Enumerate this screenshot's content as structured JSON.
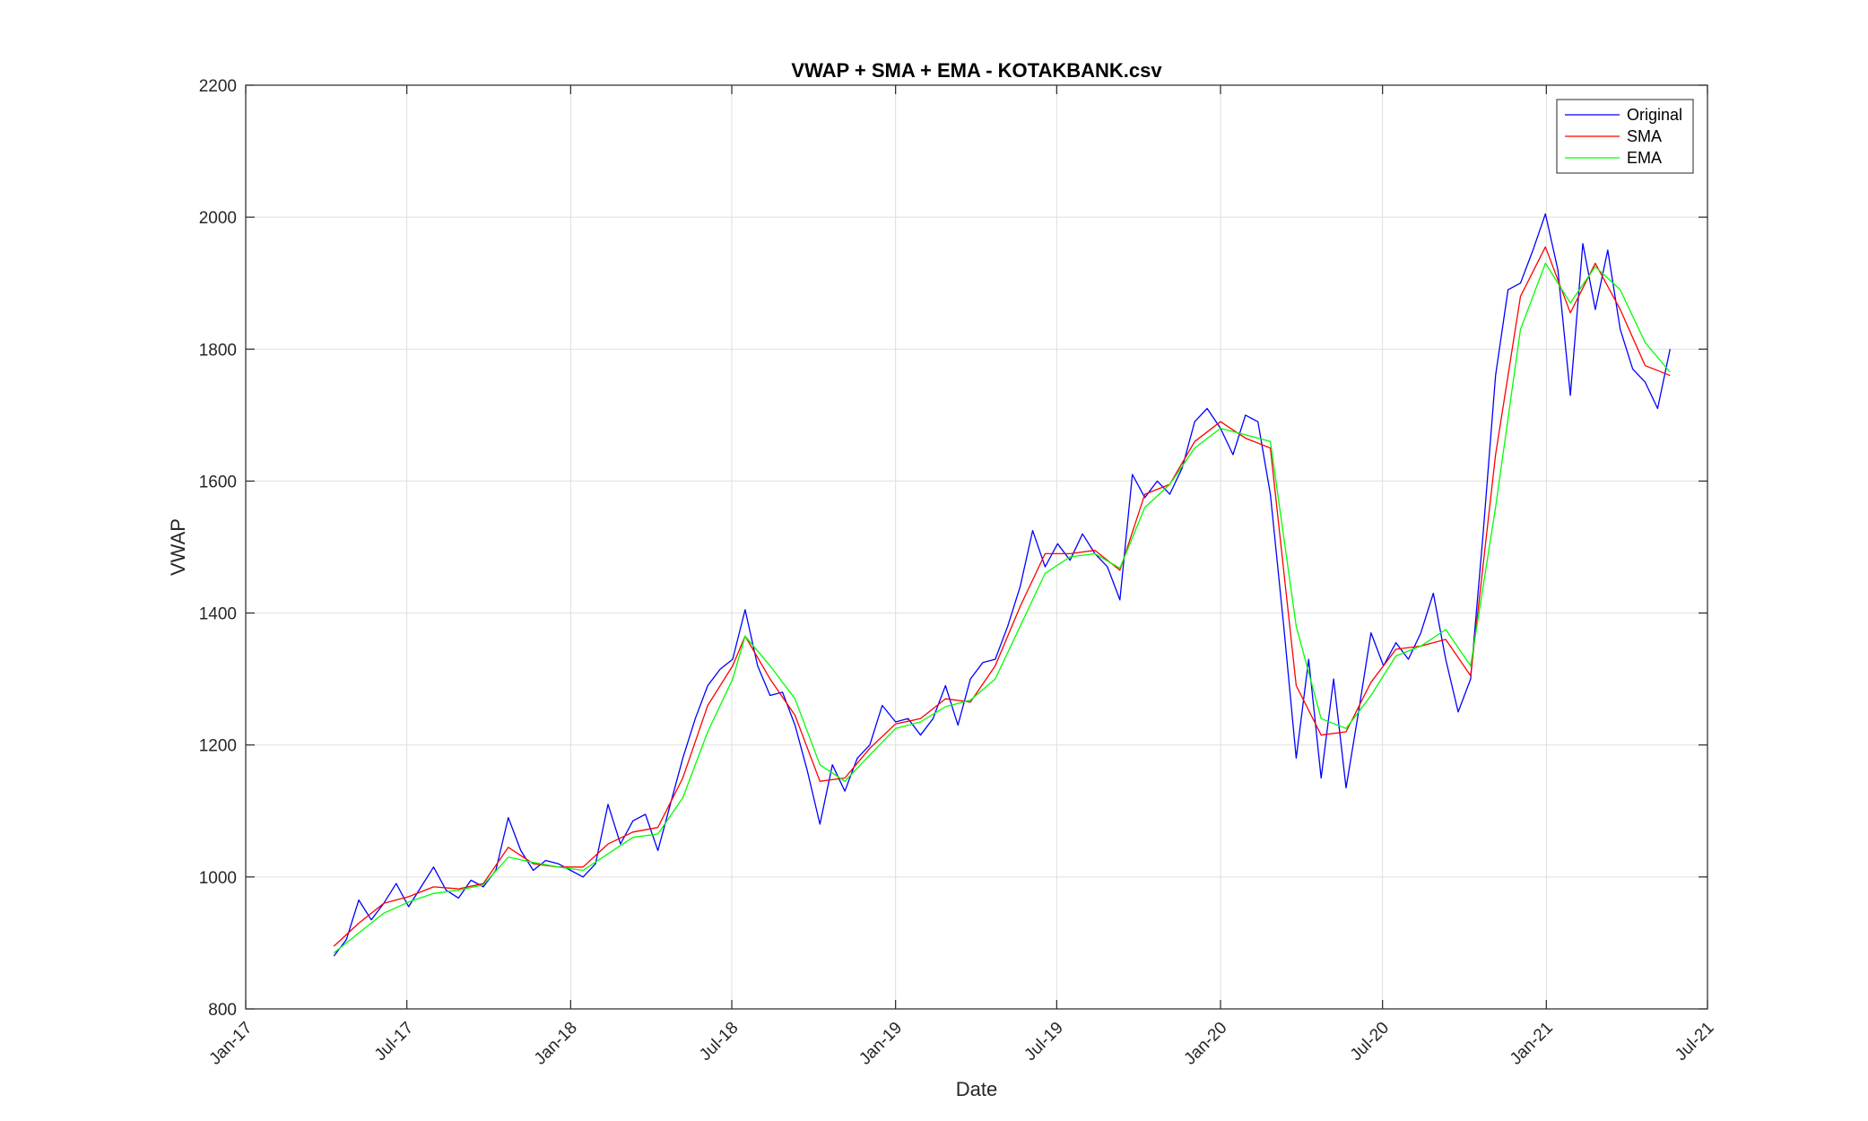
{
  "chart_data": {
    "type": "line",
    "title": "VWAP + SMA + EMA - KOTAKBANK.csv",
    "xlabel": "Date",
    "ylabel": "VWAP",
    "xlim": [
      "2017-01-01",
      "2021-07-01"
    ],
    "ylim": [
      800,
      2200
    ],
    "x_ticks": [
      "2017-01-01",
      "2017-07-01",
      "2018-01-01",
      "2018-07-01",
      "2019-01-01",
      "2019-07-01",
      "2020-01-01",
      "2020-07-01",
      "2021-01-01",
      "2021-07-01"
    ],
    "x_tick_labels": [
      "Jan-17",
      "Jul-17",
      "Jan-18",
      "Jul-18",
      "Jan-19",
      "Jul-19",
      "Jan-20",
      "Jul-20",
      "Jan-21",
      "Jul-21"
    ],
    "y_ticks": [
      800,
      1000,
      1200,
      1400,
      1600,
      1800,
      2000,
      2200
    ],
    "y_tick_labels": [
      "800",
      "1000",
      "1200",
      "1400",
      "1600",
      "1800",
      "2000",
      "2200"
    ],
    "grid": true,
    "legend_position": "top-right",
    "series": [
      {
        "name": "Original",
        "color": "#0000ff",
        "points": [
          [
            "2017-04-10",
            880
          ],
          [
            "2017-04-24",
            905
          ],
          [
            "2017-05-08",
            965
          ],
          [
            "2017-05-22",
            935
          ],
          [
            "2017-06-05",
            960
          ],
          [
            "2017-06-19",
            990
          ],
          [
            "2017-07-03",
            955
          ],
          [
            "2017-07-17",
            985
          ],
          [
            "2017-07-31",
            1015
          ],
          [
            "2017-08-14",
            980
          ],
          [
            "2017-08-28",
            968
          ],
          [
            "2017-09-11",
            995
          ],
          [
            "2017-09-25",
            985
          ],
          [
            "2017-10-09",
            1010
          ],
          [
            "2017-10-23",
            1090
          ],
          [
            "2017-11-06",
            1040
          ],
          [
            "2017-11-20",
            1010
          ],
          [
            "2017-12-04",
            1025
          ],
          [
            "2017-12-18",
            1020
          ],
          [
            "2018-01-01",
            1010
          ],
          [
            "2018-01-15",
            1000
          ],
          [
            "2018-01-29",
            1020
          ],
          [
            "2018-02-12",
            1110
          ],
          [
            "2018-02-26",
            1050
          ],
          [
            "2018-03-12",
            1085
          ],
          [
            "2018-03-26",
            1095
          ],
          [
            "2018-04-09",
            1040
          ],
          [
            "2018-04-23",
            1110
          ],
          [
            "2018-05-07",
            1180
          ],
          [
            "2018-05-21",
            1240
          ],
          [
            "2018-06-04",
            1290
          ],
          [
            "2018-06-18",
            1315
          ],
          [
            "2018-07-02",
            1330
          ],
          [
            "2018-07-16",
            1405
          ],
          [
            "2018-07-30",
            1320
          ],
          [
            "2018-08-13",
            1275
          ],
          [
            "2018-08-27",
            1280
          ],
          [
            "2018-09-10",
            1230
          ],
          [
            "2018-09-24",
            1160
          ],
          [
            "2018-10-08",
            1080
          ],
          [
            "2018-10-22",
            1170
          ],
          [
            "2018-11-05",
            1130
          ],
          [
            "2018-11-19",
            1180
          ],
          [
            "2018-12-03",
            1200
          ],
          [
            "2018-12-17",
            1260
          ],
          [
            "2019-01-01",
            1235
          ],
          [
            "2019-01-15",
            1240
          ],
          [
            "2019-01-29",
            1215
          ],
          [
            "2019-02-12",
            1240
          ],
          [
            "2019-02-26",
            1290
          ],
          [
            "2019-03-12",
            1230
          ],
          [
            "2019-03-26",
            1300
          ],
          [
            "2019-04-09",
            1325
          ],
          [
            "2019-04-23",
            1330
          ],
          [
            "2019-05-07",
            1380
          ],
          [
            "2019-05-21",
            1440
          ],
          [
            "2019-06-04",
            1525
          ],
          [
            "2019-06-18",
            1470
          ],
          [
            "2019-07-02",
            1505
          ],
          [
            "2019-07-16",
            1480
          ],
          [
            "2019-07-30",
            1520
          ],
          [
            "2019-08-13",
            1490
          ],
          [
            "2019-08-27",
            1470
          ],
          [
            "2019-09-10",
            1420
          ],
          [
            "2019-09-24",
            1610
          ],
          [
            "2019-10-08",
            1575
          ],
          [
            "2019-10-22",
            1600
          ],
          [
            "2019-11-05",
            1580
          ],
          [
            "2019-11-19",
            1620
          ],
          [
            "2019-12-03",
            1690
          ],
          [
            "2019-12-17",
            1710
          ],
          [
            "2020-01-01",
            1680
          ],
          [
            "2020-01-15",
            1640
          ],
          [
            "2020-01-29",
            1700
          ],
          [
            "2020-02-12",
            1690
          ],
          [
            "2020-02-26",
            1580
          ],
          [
            "2020-03-12",
            1380
          ],
          [
            "2020-03-26",
            1180
          ],
          [
            "2020-04-09",
            1330
          ],
          [
            "2020-04-23",
            1150
          ],
          [
            "2020-05-07",
            1300
          ],
          [
            "2020-05-21",
            1135
          ],
          [
            "2020-06-04",
            1250
          ],
          [
            "2020-06-18",
            1370
          ],
          [
            "2020-07-02",
            1320
          ],
          [
            "2020-07-16",
            1355
          ],
          [
            "2020-07-30",
            1330
          ],
          [
            "2020-08-13",
            1370
          ],
          [
            "2020-08-27",
            1430
          ],
          [
            "2020-09-10",
            1330
          ],
          [
            "2020-09-24",
            1250
          ],
          [
            "2020-10-08",
            1300
          ],
          [
            "2020-10-22",
            1520
          ],
          [
            "2020-11-05",
            1760
          ],
          [
            "2020-11-19",
            1890
          ],
          [
            "2020-12-03",
            1900
          ],
          [
            "2020-12-17",
            1950
          ],
          [
            "2020-12-31",
            2005
          ],
          [
            "2021-01-14",
            1920
          ],
          [
            "2021-01-28",
            1730
          ],
          [
            "2021-02-11",
            1960
          ],
          [
            "2021-02-25",
            1860
          ],
          [
            "2021-03-11",
            1950
          ],
          [
            "2021-03-25",
            1830
          ],
          [
            "2021-04-08",
            1770
          ],
          [
            "2021-04-22",
            1750
          ],
          [
            "2021-05-06",
            1710
          ],
          [
            "2021-05-20",
            1800
          ]
        ]
      },
      {
        "name": "SMA",
        "color": "#ff0000",
        "points": [
          [
            "2017-04-10",
            895
          ],
          [
            "2017-05-08",
            930
          ],
          [
            "2017-06-05",
            960
          ],
          [
            "2017-07-03",
            970
          ],
          [
            "2017-07-31",
            985
          ],
          [
            "2017-08-28",
            982
          ],
          [
            "2017-09-25",
            990
          ],
          [
            "2017-10-23",
            1045
          ],
          [
            "2017-11-20",
            1020
          ],
          [
            "2017-12-18",
            1015
          ],
          [
            "2018-01-15",
            1015
          ],
          [
            "2018-02-12",
            1050
          ],
          [
            "2018-03-12",
            1068
          ],
          [
            "2018-04-09",
            1075
          ],
          [
            "2018-05-07",
            1150
          ],
          [
            "2018-06-04",
            1260
          ],
          [
            "2018-07-02",
            1320
          ],
          [
            "2018-07-16",
            1365
          ],
          [
            "2018-08-13",
            1300
          ],
          [
            "2018-09-10",
            1245
          ],
          [
            "2018-10-08",
            1145
          ],
          [
            "2018-11-05",
            1150
          ],
          [
            "2018-12-03",
            1195
          ],
          [
            "2019-01-01",
            1232
          ],
          [
            "2019-01-29",
            1240
          ],
          [
            "2019-02-26",
            1270
          ],
          [
            "2019-03-26",
            1265
          ],
          [
            "2019-04-23",
            1320
          ],
          [
            "2019-05-21",
            1410
          ],
          [
            "2019-06-18",
            1490
          ],
          [
            "2019-07-16",
            1490
          ],
          [
            "2019-08-13",
            1495
          ],
          [
            "2019-09-10",
            1465
          ],
          [
            "2019-10-08",
            1580
          ],
          [
            "2019-11-05",
            1595
          ],
          [
            "2019-12-03",
            1660
          ],
          [
            "2020-01-01",
            1690
          ],
          [
            "2020-01-29",
            1665
          ],
          [
            "2020-02-26",
            1650
          ],
          [
            "2020-03-26",
            1290
          ],
          [
            "2020-04-23",
            1215
          ],
          [
            "2020-05-21",
            1220
          ],
          [
            "2020-06-18",
            1295
          ],
          [
            "2020-07-16",
            1345
          ],
          [
            "2020-08-13",
            1350
          ],
          [
            "2020-09-10",
            1360
          ],
          [
            "2020-10-08",
            1305
          ],
          [
            "2020-11-05",
            1640
          ],
          [
            "2020-12-03",
            1880
          ],
          [
            "2020-12-31",
            1955
          ],
          [
            "2021-01-28",
            1855
          ],
          [
            "2021-02-25",
            1930
          ],
          [
            "2021-03-25",
            1860
          ],
          [
            "2021-04-22",
            1775
          ],
          [
            "2021-05-20",
            1760
          ]
        ]
      },
      {
        "name": "EMA",
        "color": "#00ff00",
        "points": [
          [
            "2017-04-10",
            885
          ],
          [
            "2017-05-08",
            915
          ],
          [
            "2017-06-05",
            945
          ],
          [
            "2017-07-03",
            962
          ],
          [
            "2017-07-31",
            975
          ],
          [
            "2017-08-28",
            980
          ],
          [
            "2017-09-25",
            988
          ],
          [
            "2017-10-23",
            1030
          ],
          [
            "2017-11-20",
            1022
          ],
          [
            "2017-12-18",
            1015
          ],
          [
            "2018-01-15",
            1010
          ],
          [
            "2018-02-12",
            1035
          ],
          [
            "2018-03-12",
            1060
          ],
          [
            "2018-04-09",
            1065
          ],
          [
            "2018-05-07",
            1120
          ],
          [
            "2018-06-04",
            1220
          ],
          [
            "2018-07-02",
            1300
          ],
          [
            "2018-07-16",
            1365
          ],
          [
            "2018-08-13",
            1320
          ],
          [
            "2018-09-10",
            1270
          ],
          [
            "2018-10-08",
            1170
          ],
          [
            "2018-11-05",
            1145
          ],
          [
            "2018-12-03",
            1185
          ],
          [
            "2019-01-01",
            1225
          ],
          [
            "2019-01-29",
            1235
          ],
          [
            "2019-02-26",
            1258
          ],
          [
            "2019-03-26",
            1268
          ],
          [
            "2019-04-23",
            1300
          ],
          [
            "2019-05-21",
            1380
          ],
          [
            "2019-06-18",
            1460
          ],
          [
            "2019-07-16",
            1485
          ],
          [
            "2019-08-13",
            1490
          ],
          [
            "2019-09-10",
            1468
          ],
          [
            "2019-10-08",
            1560
          ],
          [
            "2019-11-05",
            1595
          ],
          [
            "2019-12-03",
            1650
          ],
          [
            "2020-01-01",
            1680
          ],
          [
            "2020-01-29",
            1670
          ],
          [
            "2020-02-26",
            1660
          ],
          [
            "2020-03-26",
            1380
          ],
          [
            "2020-04-23",
            1240
          ],
          [
            "2020-05-21",
            1225
          ],
          [
            "2020-06-18",
            1275
          ],
          [
            "2020-07-16",
            1335
          ],
          [
            "2020-08-13",
            1350
          ],
          [
            "2020-09-10",
            1375
          ],
          [
            "2020-10-08",
            1320
          ],
          [
            "2020-11-05",
            1560
          ],
          [
            "2020-12-03",
            1830
          ],
          [
            "2020-12-31",
            1930
          ],
          [
            "2021-01-28",
            1870
          ],
          [
            "2021-02-25",
            1925
          ],
          [
            "2021-03-25",
            1890
          ],
          [
            "2021-04-22",
            1810
          ],
          [
            "2021-05-20",
            1765
          ]
        ]
      }
    ]
  }
}
